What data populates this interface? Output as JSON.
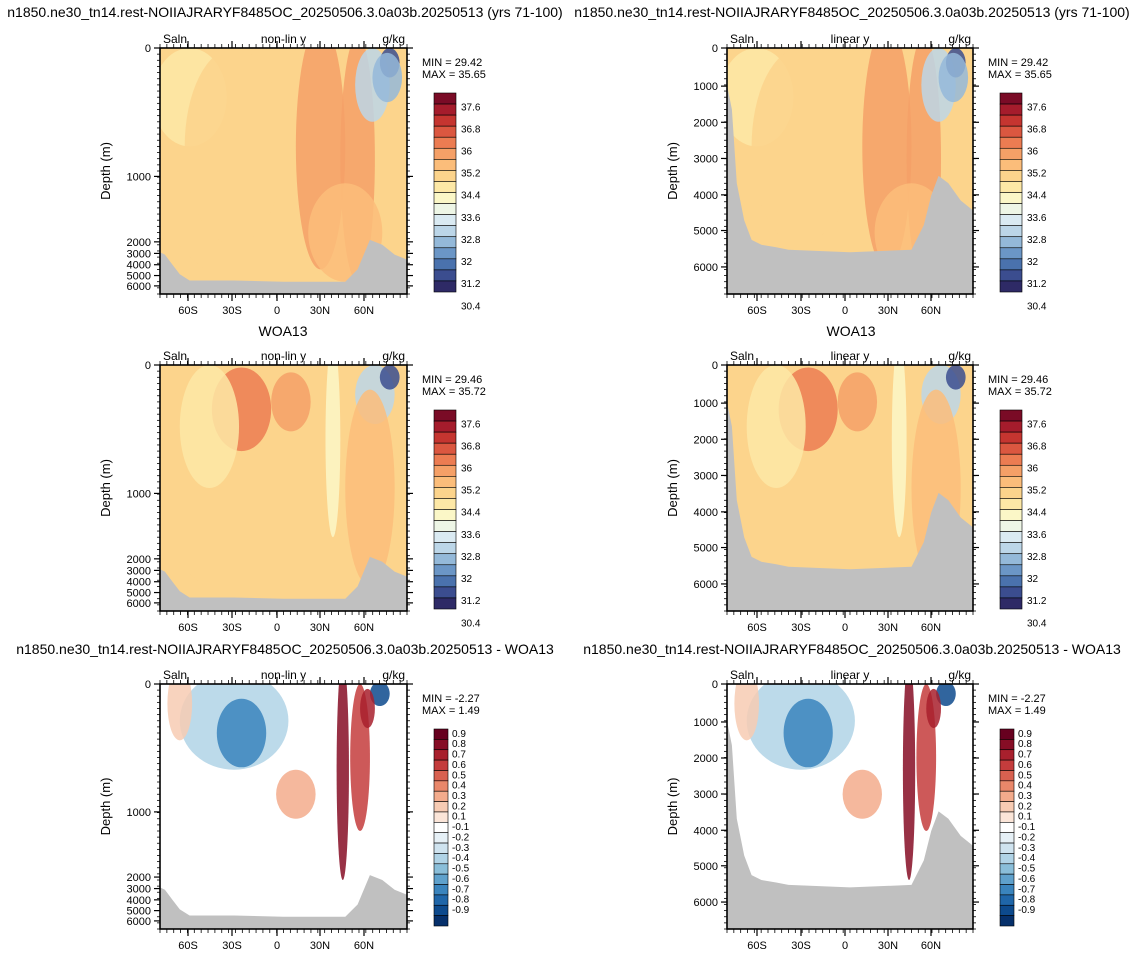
{
  "figure": {
    "title_model": "n1850.ne30_tn14.rest-NOIIAJRARYF8485OC_20250506.3.0a03b.20250513 (yrs 71-100)",
    "title_obs": "WOA13",
    "title_diff": "n1850.ne30_tn14.rest-NOIIAJRARYF8485OC_20250506.3.0a03b.20250513 - WOA13"
  },
  "colors": {
    "land": "#c0c0c0",
    "salinity_scale": [
      "#2e2a66",
      "#3b4d8f",
      "#4a72ad",
      "#6b96c6",
      "#94b9d9",
      "#bcd6e8",
      "#daeaf2",
      "#eef6e6",
      "#fbf7c7",
      "#fde8a6",
      "#fcd48c",
      "#fbbd7a",
      "#f5a067",
      "#ec7c52",
      "#db5740",
      "#c53530",
      "#a51c2c",
      "#7a0b26"
    ],
    "anomaly_scale": [
      "#06306b",
      "#0d4a8d",
      "#1f66a9",
      "#3a84bd",
      "#5fa1cc",
      "#8abed9",
      "#b0d3e6",
      "#cfe3ef",
      "#e6f0f6",
      "#ffffff",
      "#fbe5d8",
      "#f7cbb3",
      "#f3ab8c",
      "#e9876a",
      "#d86150",
      "#c43c3c",
      "#a8202d",
      "#860d25",
      "#67001f"
    ]
  },
  "chart_data": [
    {
      "type": "heatmap",
      "title": "n1850.ne30_tn14.rest-NOIIAJRARYF8485OC_20250506.3.0a03b.20250513 (yrs 71-100)",
      "left_label": "Saln",
      "center_label": "non-lin y",
      "right_label": "g/kg",
      "ylabel": "Depth (m)",
      "y_scale": "non-linear",
      "yticks": [
        "0",
        "1000",
        "2000",
        "3000",
        "4000",
        "5000",
        "6000"
      ],
      "xticks": [
        "60S",
        "30S",
        "0",
        "30N",
        "60N"
      ],
      "stats": [
        "MIN =  29.42",
        "MAX =  35.65"
      ],
      "colorbar": [
        "37.6",
        "36.8",
        "36",
        "35.2",
        "34.4",
        "33.6",
        "32.8",
        "32",
        "31.2",
        "30.4"
      ]
    },
    {
      "type": "heatmap",
      "title": "n1850.ne30_tn14.rest-NOIIAJRARYF8485OC_20250506.3.0a03b.20250513 (yrs 71-100)",
      "left_label": "Saln",
      "center_label": "linear y",
      "right_label": "g/kg",
      "ylabel": "Depth (m)",
      "y_scale": "linear",
      "yticks": [
        "0",
        "1000",
        "2000",
        "3000",
        "4000",
        "5000",
        "6000"
      ],
      "xticks": [
        "60S",
        "30S",
        "0",
        "30N",
        "60N"
      ],
      "stats": [
        "MIN =  29.42",
        "MAX =  35.65"
      ],
      "colorbar": [
        "37.6",
        "36.8",
        "36",
        "35.2",
        "34.4",
        "33.6",
        "32.8",
        "32",
        "31.2",
        "30.4"
      ]
    },
    {
      "type": "heatmap",
      "title": "WOA13",
      "left_label": "Saln",
      "center_label": "non-lin y",
      "right_label": "g/kg",
      "ylabel": "Depth (m)",
      "y_scale": "non-linear",
      "yticks": [
        "0",
        "1000",
        "2000",
        "3000",
        "4000",
        "5000",
        "6000"
      ],
      "xticks": [
        "60S",
        "30S",
        "0",
        "30N",
        "60N"
      ],
      "stats": [
        "MIN =  29.46",
        "MAX =  35.72"
      ],
      "colorbar": [
        "37.6",
        "36.8",
        "36",
        "35.2",
        "34.4",
        "33.6",
        "32.8",
        "32",
        "31.2",
        "30.4"
      ]
    },
    {
      "type": "heatmap",
      "title": "WOA13",
      "left_label": "Saln",
      "center_label": "linear y",
      "right_label": "g/kg",
      "ylabel": "Depth (m)",
      "y_scale": "linear",
      "yticks": [
        "0",
        "1000",
        "2000",
        "3000",
        "4000",
        "5000",
        "6000"
      ],
      "xticks": [
        "60S",
        "30S",
        "0",
        "30N",
        "60N"
      ],
      "stats": [
        "MIN =  29.46",
        "MAX =  35.72"
      ],
      "colorbar": [
        "37.6",
        "36.8",
        "36",
        "35.2",
        "34.4",
        "33.6",
        "32.8",
        "32",
        "31.2",
        "30.4"
      ]
    },
    {
      "type": "heatmap",
      "title": "n1850.ne30_tn14.rest-NOIIAJRARYF8485OC_20250506.3.0a03b.20250513 - WOA13",
      "left_label": "Saln",
      "center_label": "non-lin y",
      "right_label": "g/kg",
      "ylabel": "Depth (m)",
      "y_scale": "non-linear",
      "yticks": [
        "0",
        "1000",
        "2000",
        "3000",
        "4000",
        "5000",
        "6000"
      ],
      "xticks": [
        "60S",
        "30S",
        "0",
        "30N",
        "60N"
      ],
      "stats": [
        "MIN =  -2.27",
        "MAX =   1.49"
      ],
      "colorbar": [
        "0.9",
        "0.8",
        "0.7",
        "0.6",
        "0.5",
        "0.4",
        "0.3",
        "0.2",
        "0.1",
        "-0.1",
        "-0.2",
        "-0.3",
        "-0.4",
        "-0.5",
        "-0.6",
        "-0.7",
        "-0.8",
        "-0.9"
      ]
    },
    {
      "type": "heatmap",
      "title": "n1850.ne30_tn14.rest-NOIIAJRARYF8485OC_20250506.3.0a03b.20250513 - WOA13",
      "left_label": "Saln",
      "center_label": "linear y",
      "right_label": "g/kg",
      "ylabel": "Depth (m)",
      "y_scale": "linear",
      "yticks": [
        "0",
        "1000",
        "2000",
        "3000",
        "4000",
        "5000",
        "6000"
      ],
      "xticks": [
        "60S",
        "30S",
        "0",
        "30N",
        "60N"
      ],
      "stats": [
        "MIN =  -2.27",
        "MAX =   1.49"
      ],
      "colorbar": [
        "0.9",
        "0.8",
        "0.7",
        "0.6",
        "0.5",
        "0.4",
        "0.3",
        "0.2",
        "0.1",
        "-0.1",
        "-0.2",
        "-0.3",
        "-0.4",
        "-0.5",
        "-0.6",
        "-0.7",
        "-0.8",
        "-0.9"
      ]
    }
  ]
}
